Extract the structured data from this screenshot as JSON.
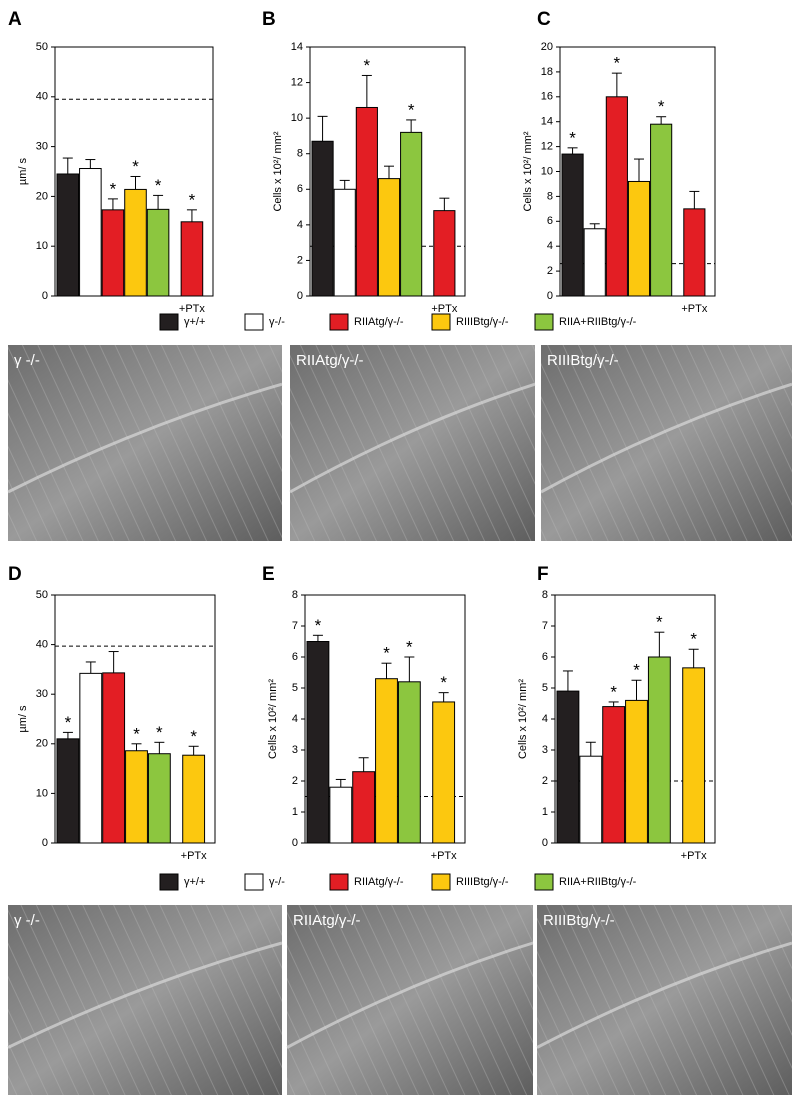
{
  "chart_data": [
    {
      "type": "bar",
      "panel": "A",
      "ylabel": "µm/ s",
      "categories": [
        null,
        null,
        null,
        null,
        null,
        "+PTx"
      ],
      "values": [
        24.5,
        25.6,
        17.3,
        21.4,
        17.4,
        14.9
      ],
      "errors": [
        3.2,
        1.8,
        2.2,
        2.6,
        2.8,
        2.4
      ],
      "colors": [
        "#231f20",
        "#ffffff",
        "#e31e24",
        "#fcc80f",
        "#8cc63f",
        "#e31e24"
      ],
      "annotations": [
        null,
        null,
        "*",
        "*",
        "*",
        "*"
      ],
      "reference_line": 39.5,
      "ylim": [
        0,
        50
      ],
      "yticks": [
        0,
        10,
        20,
        30,
        40,
        50
      ]
    },
    {
      "type": "bar",
      "panel": "B",
      "ylabel": "Cells x 10²/ mm²",
      "categories": [
        null,
        null,
        null,
        null,
        null,
        "+PTx"
      ],
      "values": [
        8.7,
        6.0,
        10.6,
        6.6,
        9.2,
        4.8
      ],
      "errors": [
        1.4,
        0.5,
        1.8,
        0.7,
        0.7,
        0.7
      ],
      "colors": [
        "#231f20",
        "#ffffff",
        "#e31e24",
        "#fcc80f",
        "#8cc63f",
        "#e31e24"
      ],
      "annotations": [
        null,
        null,
        "*",
        null,
        "*",
        null
      ],
      "reference_line": 2.8,
      "ylim": [
        0,
        14
      ],
      "yticks": [
        0,
        2,
        4,
        6,
        8,
        10,
        12,
        14
      ]
    },
    {
      "type": "bar",
      "panel": "C",
      "ylabel": "Cells x 10²/ mm²",
      "categories": [
        null,
        null,
        null,
        null,
        null,
        "+PTx"
      ],
      "values": [
        11.4,
        5.4,
        16.0,
        9.2,
        13.8,
        7.0
      ],
      "errors": [
        0.5,
        0.4,
        1.9,
        1.8,
        0.6,
        1.4
      ],
      "colors": [
        "#231f20",
        "#ffffff",
        "#e31e24",
        "#fcc80f",
        "#8cc63f",
        "#e31e24"
      ],
      "annotations": [
        "*",
        null,
        "*",
        null,
        "*",
        null
      ],
      "reference_line": 2.6,
      "ylim": [
        0,
        20
      ],
      "yticks": [
        0,
        2,
        4,
        6,
        8,
        10,
        12,
        14,
        16,
        18,
        20
      ]
    },
    {
      "type": "bar",
      "panel": "D",
      "ylabel": "µm/ s",
      "categories": [
        null,
        null,
        null,
        null,
        null,
        "+PTx"
      ],
      "values": [
        21.0,
        34.2,
        34.3,
        18.6,
        18.0,
        17.7
      ],
      "errors": [
        1.3,
        2.3,
        4.3,
        1.4,
        2.3,
        1.8
      ],
      "colors": [
        "#231f20",
        "#ffffff",
        "#e31e24",
        "#fcc80f",
        "#8cc63f",
        "#fcc80f"
      ],
      "annotations": [
        "*",
        null,
        null,
        "*",
        "*",
        "*"
      ],
      "reference_line": 39.7,
      "ylim": [
        0,
        50
      ],
      "yticks": [
        0,
        10,
        20,
        30,
        40,
        50
      ]
    },
    {
      "type": "bar",
      "panel": "E",
      "ylabel": "Cells x 10²/ mm²",
      "categories": [
        null,
        null,
        null,
        null,
        null,
        "+PTx"
      ],
      "values": [
        6.5,
        1.8,
        2.3,
        5.3,
        5.2,
        4.55
      ],
      "errors": [
        0.2,
        0.25,
        0.45,
        0.5,
        0.8,
        0.3
      ],
      "colors": [
        "#231f20",
        "#ffffff",
        "#e31e24",
        "#fcc80f",
        "#8cc63f",
        "#fcc80f"
      ],
      "annotations": [
        "*",
        null,
        null,
        "*",
        "*",
        "*"
      ],
      "reference_line": 1.5,
      "ylim": [
        0,
        8
      ],
      "yticks": [
        0,
        1,
        2,
        3,
        4,
        5,
        6,
        7,
        8
      ]
    },
    {
      "type": "bar",
      "panel": "F",
      "ylabel": "Cells x 10²/ mm²",
      "categories": [
        null,
        null,
        null,
        null,
        null,
        "+PTx"
      ],
      "values": [
        4.9,
        2.8,
        4.4,
        4.6,
        6.0,
        5.65
      ],
      "errors": [
        0.65,
        0.45,
        0.15,
        0.65,
        0.8,
        0.6
      ],
      "colors": [
        "#231f20",
        "#ffffff",
        "#e31e24",
        "#fcc80f",
        "#8cc63f",
        "#fcc80f"
      ],
      "annotations": [
        null,
        null,
        "*",
        "*",
        "*",
        "*"
      ],
      "reference_line": 2.0,
      "ylim": [
        0,
        8
      ],
      "yticks": [
        0,
        1,
        2,
        3,
        4,
        5,
        6,
        7,
        8
      ]
    }
  ],
  "legend": {
    "labels": [
      "γ+/+",
      "γ-/-",
      "RIIAtg/γ-/-",
      "RIIIBtg/γ-/-",
      "RIIA+RIIBtg/γ-/-"
    ],
    "colors": [
      "#231f20",
      "#ffffff",
      "#e31e24",
      "#fcc80f",
      "#8cc63f"
    ]
  },
  "micrographs": [
    {
      "label": "γ -/-"
    },
    {
      "label": "RIIAtg/γ-/-"
    },
    {
      "label": "RIIIBtg/γ-/-"
    },
    {
      "label": "γ -/-"
    },
    {
      "label": "RIIAtg/γ-/-"
    },
    {
      "label": "RIIIBtg/γ-/-"
    }
  ]
}
